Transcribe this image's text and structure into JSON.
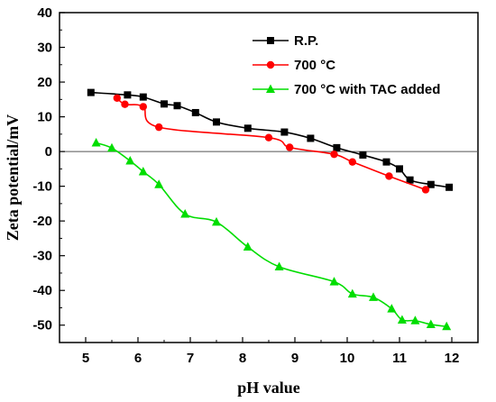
{
  "chart_data": {
    "type": "line",
    "title": "",
    "xlabel": "pH value",
    "ylabel": "Zeta potential/mV",
    "xlim": [
      4.5,
      12.5
    ],
    "ylim": [
      -55,
      40
    ],
    "xticks": [
      5,
      6,
      7,
      8,
      9,
      10,
      11,
      12
    ],
    "yticks": [
      -50,
      -40,
      -30,
      -20,
      -10,
      0,
      10,
      20,
      30,
      40
    ],
    "reference_line_y": 0,
    "grid": false,
    "legend": "top-right",
    "series": [
      {
        "name": "R.P.",
        "color": "#000000",
        "marker": "square",
        "x": [
          5.1,
          5.8,
          6.1,
          6.5,
          6.75,
          7.1,
          7.5,
          8.1,
          8.8,
          9.3,
          9.8,
          10.3,
          10.75,
          11.0,
          11.2,
          11.6,
          11.95
        ],
        "y": [
          17.0,
          16.3,
          15.7,
          13.7,
          13.2,
          11.2,
          8.5,
          6.7,
          5.6,
          3.8,
          1.1,
          -1.0,
          -3.0,
          -5.0,
          -8.2,
          -9.5,
          -10.3
        ]
      },
      {
        "name": "700 °C",
        "color": "#ff0000",
        "marker": "circle",
        "x": [
          5.6,
          5.75,
          6.1,
          6.4,
          8.5,
          8.9,
          9.75,
          10.1,
          10.8,
          11.5
        ],
        "y": [
          15.4,
          13.6,
          12.9,
          7.0,
          4.0,
          1.2,
          -0.8,
          -3.0,
          -7.1,
          -11.0
        ]
      },
      {
        "name": "700 °C with TAC added",
        "color": "#00dd00",
        "marker": "triangle",
        "x": [
          5.2,
          5.5,
          5.85,
          6.1,
          6.4,
          6.9,
          7.5,
          8.1,
          8.7,
          9.75,
          10.1,
          10.5,
          10.85,
          11.05,
          11.3,
          11.6,
          11.9
        ],
        "y": [
          2.5,
          1.0,
          -2.7,
          -5.8,
          -9.5,
          -18.0,
          -20.3,
          -27.5,
          -33.2,
          -37.5,
          -41.0,
          -42.0,
          -45.3,
          -48.5,
          -48.7,
          -49.8,
          -50.4
        ]
      }
    ]
  }
}
